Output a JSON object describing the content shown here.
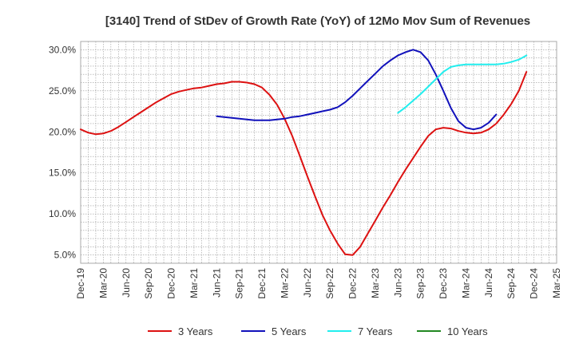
{
  "chart_data": {
    "type": "line",
    "title": "[3140]  Trend of StDev of Growth Rate (YoY) of 12Mo Mov Sum of Revenues",
    "xlabel": "",
    "ylabel": "",
    "ylim": [
      4.0,
      31.0
    ],
    "y_ticks": [
      5.0,
      10.0,
      15.0,
      20.0,
      25.0,
      30.0
    ],
    "y_tick_labels": [
      "5.0%",
      "10.0%",
      "15.0%",
      "20.0%",
      "25.0%",
      "30.0%"
    ],
    "x_tick_labels": [
      "Dec-19",
      "Mar-20",
      "Jun-20",
      "Sep-20",
      "Dec-20",
      "Mar-21",
      "Jun-21",
      "Sep-21",
      "Dec-21",
      "Mar-22",
      "Jun-22",
      "Sep-22",
      "Dec-22",
      "Mar-23",
      "Jun-23",
      "Sep-23",
      "Dec-23",
      "Mar-24",
      "Jun-24",
      "Sep-24",
      "Dec-24",
      "Mar-25"
    ],
    "grid": true,
    "legend_position": "bottom",
    "series": [
      {
        "name": "3 Years",
        "color": "#dd1111",
        "start_index": 0,
        "values": [
          20.3,
          19.9,
          19.7,
          19.8,
          20.1,
          20.6,
          21.2,
          21.8,
          22.4,
          23.0,
          23.6,
          24.1,
          24.6,
          24.9,
          25.1,
          25.3,
          25.4,
          25.6,
          25.8,
          25.9,
          26.1,
          26.1,
          26.0,
          25.8,
          25.4,
          24.5,
          23.3,
          21.6,
          19.5,
          17.1,
          14.6,
          12.2,
          9.9,
          8.0,
          6.4,
          5.1,
          5.0,
          6.0,
          7.6,
          9.2,
          10.8,
          12.3,
          13.9,
          15.4,
          16.8,
          18.2,
          19.5,
          20.3,
          20.5,
          20.4,
          20.1,
          19.9,
          19.8,
          19.9,
          20.3,
          21.0,
          22.1,
          23.4,
          25.0,
          27.3
        ]
      },
      {
        "name": "5 Years",
        "color": "#1111bb",
        "start_index": 18,
        "values": [
          21.9,
          21.8,
          21.7,
          21.6,
          21.5,
          21.4,
          21.4,
          21.4,
          21.5,
          21.6,
          21.8,
          21.9,
          22.1,
          22.3,
          22.5,
          22.7,
          23.0,
          23.6,
          24.4,
          25.3,
          26.2,
          27.1,
          28.0,
          28.7,
          29.3,
          29.7,
          30.0,
          29.7,
          28.7,
          27.0,
          25.0,
          22.9,
          21.3,
          20.5,
          20.3,
          20.5,
          21.1,
          22.1
        ]
      },
      {
        "name": "7 Years",
        "color": "#22eeee",
        "start_index": 42,
        "values": [
          22.3,
          23.0,
          23.8,
          24.6,
          25.5,
          26.4,
          27.3,
          27.9,
          28.1,
          28.2,
          28.2,
          28.2,
          28.2,
          28.2,
          28.3,
          28.5,
          28.8,
          29.3
        ]
      },
      {
        "name": "10 Years",
        "color": "#228822",
        "start_index": 0,
        "values": []
      }
    ]
  }
}
